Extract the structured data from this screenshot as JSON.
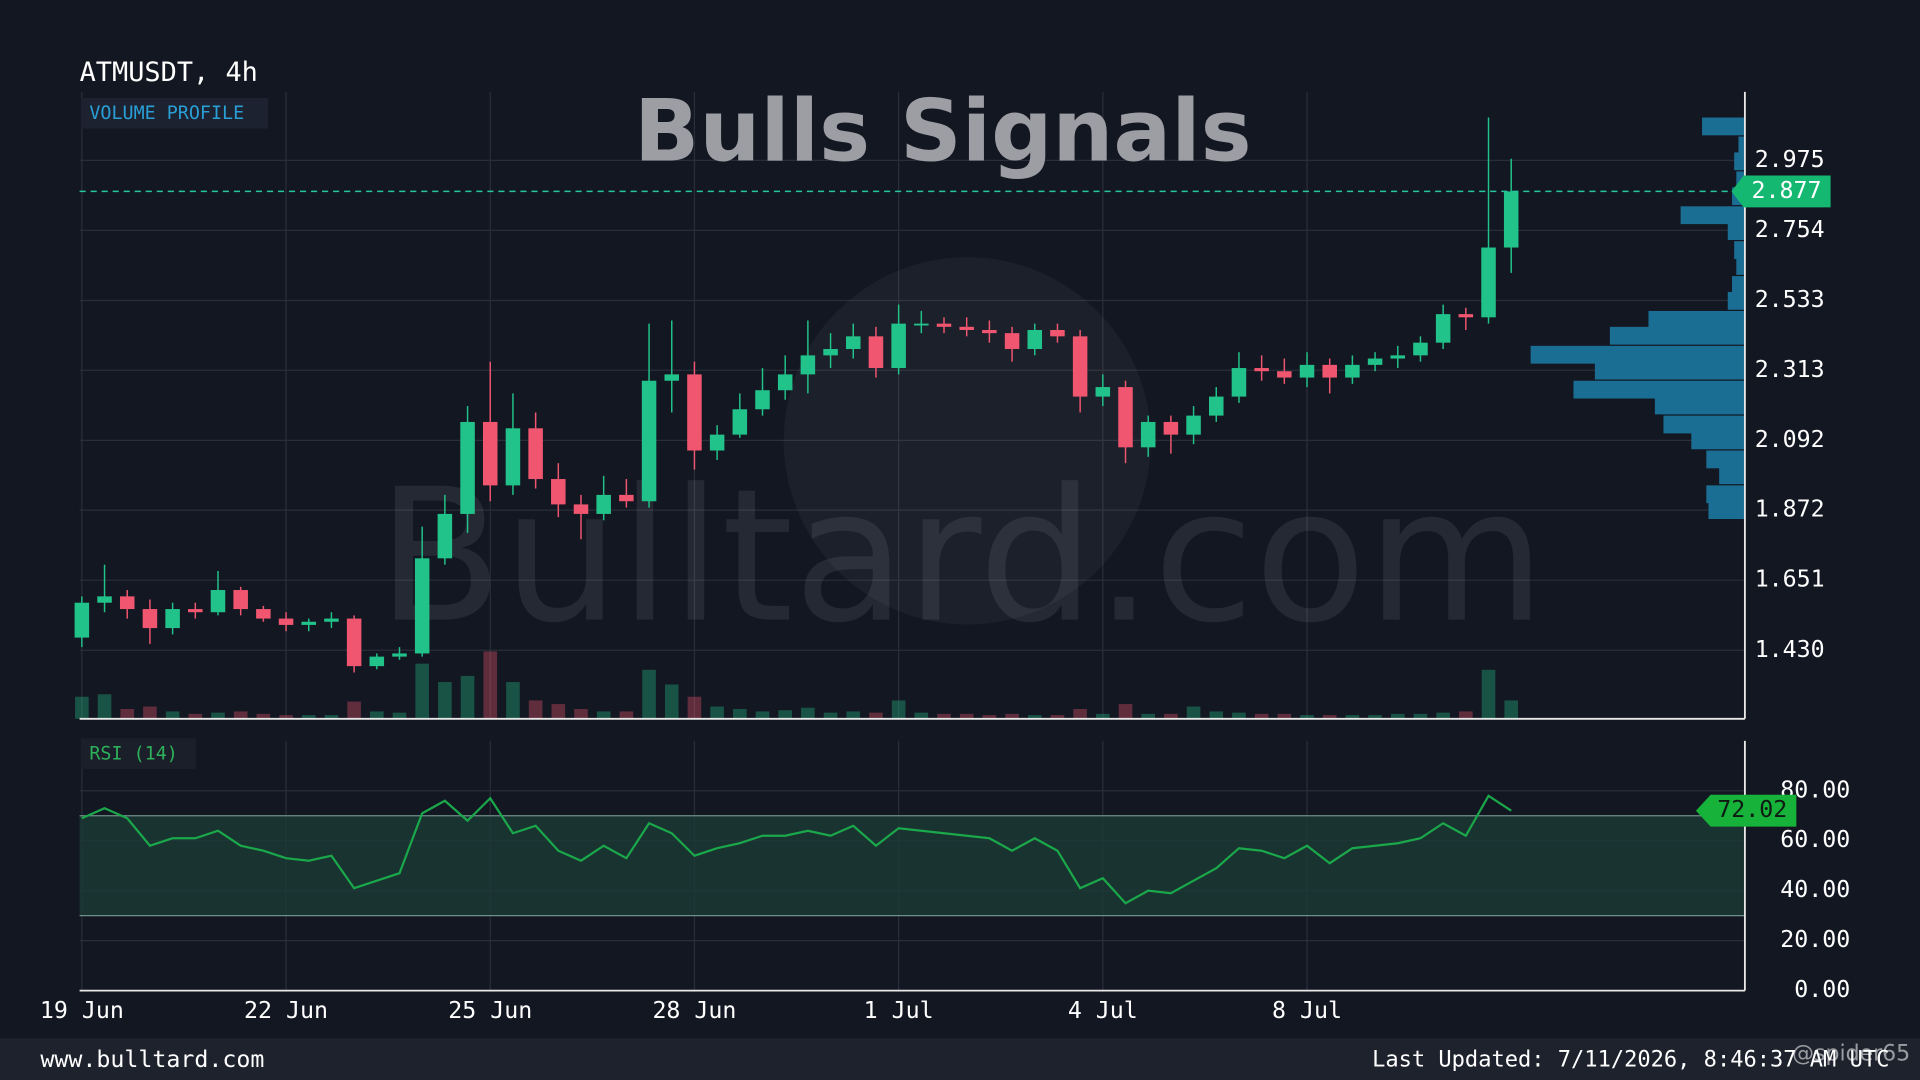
{
  "chart_data": [
    {
      "type": "candlestick",
      "title": "ATMUSDT, 4h",
      "indicator_label": "VOLUME PROFILE",
      "up_color": "#22c38a",
      "down_color": "#f0566f",
      "profile_color": "#1b6e93",
      "xlim": [
        -0.1,
        73.3
      ],
      "xticks": [
        {
          "value": 0,
          "label": "19 Jun"
        },
        {
          "value": 9,
          "label": "22 Jun"
        },
        {
          "value": 18,
          "label": "25 Jun"
        },
        {
          "value": 27,
          "label": "28 Jun"
        },
        {
          "value": 36,
          "label": "1 Jul"
        },
        {
          "value": 45,
          "label": "4 Jul"
        },
        {
          "value": 54,
          "label": "8 Jul"
        }
      ],
      "ylim": [
        1.214,
        3.191
      ],
      "yticks": [
        2.975,
        2.754,
        2.533,
        2.313,
        2.092,
        1.872,
        1.651,
        {
          "value": 1.43,
          "label": "1.430"
        }
      ],
      "grid": true,
      "open": [
        1.47,
        1.58,
        1.6,
        1.56,
        1.5,
        1.56,
        1.55,
        1.62,
        1.56,
        1.53,
        1.51,
        1.52,
        1.53,
        1.38,
        1.41,
        1.42,
        1.72,
        1.86,
        2.15,
        1.95,
        2.13,
        1.97,
        1.89,
        1.86,
        1.92,
        1.9,
        2.28,
        2.3,
        2.06,
        2.11,
        2.19,
        2.25,
        2.3,
        2.36,
        2.38,
        2.42,
        2.32,
        2.46,
        2.46,
        2.45,
        2.44,
        2.43,
        2.38,
        2.44,
        2.42,
        2.23,
        2.26,
        2.07,
        2.15,
        2.11,
        2.17,
        2.23,
        2.32,
        2.31,
        2.29,
        2.33,
        2.29,
        2.33,
        2.35,
        2.36,
        2.4,
        2.49,
        2.48,
        2.7
      ],
      "high": [
        1.6,
        1.7,
        1.62,
        1.59,
        1.58,
        1.58,
        1.68,
        1.63,
        1.57,
        1.55,
        1.53,
        1.55,
        1.54,
        1.42,
        1.44,
        1.82,
        1.92,
        2.2,
        2.34,
        2.24,
        2.18,
        2.02,
        1.92,
        1.98,
        1.97,
        2.46,
        2.47,
        2.34,
        2.14,
        2.24,
        2.32,
        2.36,
        2.47,
        2.43,
        2.46,
        2.45,
        2.52,
        2.5,
        2.48,
        2.48,
        2.47,
        2.45,
        2.46,
        2.46,
        2.44,
        2.3,
        2.28,
        2.17,
        2.17,
        2.2,
        2.26,
        2.37,
        2.36,
        2.35,
        2.37,
        2.35,
        2.36,
        2.37,
        2.39,
        2.42,
        2.52,
        2.51,
        3.11,
        2.98
      ],
      "low": [
        1.44,
        1.55,
        1.53,
        1.45,
        1.48,
        1.53,
        1.54,
        1.54,
        1.52,
        1.49,
        1.49,
        1.5,
        1.36,
        1.37,
        1.4,
        1.41,
        1.7,
        1.8,
        1.9,
        1.92,
        1.94,
        1.85,
        1.78,
        1.84,
        1.88,
        1.88,
        2.18,
        2.0,
        2.03,
        2.1,
        2.17,
        2.22,
        2.24,
        2.32,
        2.35,
        2.29,
        2.3,
        2.43,
        2.43,
        2.42,
        2.4,
        2.34,
        2.36,
        2.4,
        2.18,
        2.2,
        2.02,
        2.04,
        2.05,
        2.08,
        2.15,
        2.21,
        2.28,
        2.27,
        2.26,
        2.24,
        2.27,
        2.31,
        2.32,
        2.34,
        2.38,
        2.44,
        2.46,
        2.62
      ],
      "close": [
        1.58,
        1.6,
        1.56,
        1.5,
        1.56,
        1.55,
        1.62,
        1.56,
        1.53,
        1.51,
        1.52,
        1.53,
        1.38,
        1.41,
        1.42,
        1.72,
        1.86,
        2.15,
        1.95,
        2.13,
        1.97,
        1.89,
        1.86,
        1.92,
        1.9,
        2.28,
        2.3,
        2.06,
        2.11,
        2.19,
        2.25,
        2.3,
        2.36,
        2.38,
        2.42,
        2.32,
        2.46,
        2.46,
        2.45,
        2.44,
        2.43,
        2.38,
        2.44,
        2.42,
        2.23,
        2.26,
        2.07,
        2.15,
        2.11,
        2.17,
        2.23,
        2.32,
        2.31,
        2.29,
        2.33,
        2.29,
        2.33,
        2.35,
        2.36,
        2.4,
        2.49,
        2.48,
        2.7,
        2.877
      ],
      "volume": [
        18,
        20,
        8,
        10,
        6,
        4,
        5,
        6,
        4,
        3,
        3,
        3,
        14,
        6,
        5,
        45,
        30,
        35,
        55,
        30,
        15,
        12,
        8,
        6,
        6,
        40,
        28,
        18,
        10,
        8,
        6,
        7,
        9,
        5,
        6,
        5,
        15,
        5,
        4,
        4,
        3,
        4,
        3,
        3,
        8,
        4,
        12,
        4,
        4,
        10,
        6,
        5,
        4,
        4,
        3,
        3,
        3,
        3,
        4,
        4,
        5,
        6,
        40,
        15
      ],
      "volume_profile": {
        "prices": [
          3.08,
          3.02,
          2.97,
          2.91,
          2.86,
          2.8,
          2.75,
          2.69,
          2.64,
          2.58,
          2.53,
          2.47,
          2.42,
          2.36,
          2.31,
          2.25,
          2.2,
          2.14,
          2.09,
          2.03,
          1.98,
          1.92,
          1.87
        ],
        "values": [
          20,
          3,
          5,
          4,
          6,
          30,
          8,
          5,
          4,
          6,
          8,
          45,
          63,
          100,
          70,
          80,
          42,
          38,
          25,
          18,
          12,
          18,
          17
        ]
      }
    },
    {
      "type": "line",
      "title": "RSI (14)",
      "color": "#1aa84a",
      "band_color": "#1b3b36",
      "band": [
        30,
        70
      ],
      "ylim": [
        0,
        100
      ],
      "yticks": [
        {
          "value": 80,
          "label": "80.00"
        },
        {
          "value": 60,
          "label": "60.00"
        },
        {
          "value": 40,
          "label": "40.00"
        },
        {
          "value": 20,
          "label": "20.00"
        },
        {
          "value": 0,
          "label": "0.00"
        }
      ],
      "values": [
        69,
        73,
        69,
        58,
        61,
        61,
        64,
        58,
        56,
        53,
        52,
        54,
        41,
        44,
        47,
        71,
        76,
        68,
        77,
        63,
        66,
        56,
        52,
        58,
        53,
        67,
        63,
        54,
        57,
        59,
        62,
        62,
        64,
        62,
        66,
        58,
        65,
        64,
        63,
        62,
        61,
        56,
        61,
        56,
        41,
        45,
        35,
        40,
        39,
        44,
        49,
        57,
        56,
        53,
        58,
        51,
        57,
        58,
        59,
        61,
        67,
        62,
        78,
        72.02
      ]
    }
  ],
  "watermark": {
    "headline": "Bulls Signals",
    "logo_text": "Bulltard.com"
  },
  "footer": {
    "site": "www.bulltard.com",
    "updated": "Last Updated: 7/11/2026, 8:46:37 AM UTC",
    "handle": "@spider65"
  }
}
